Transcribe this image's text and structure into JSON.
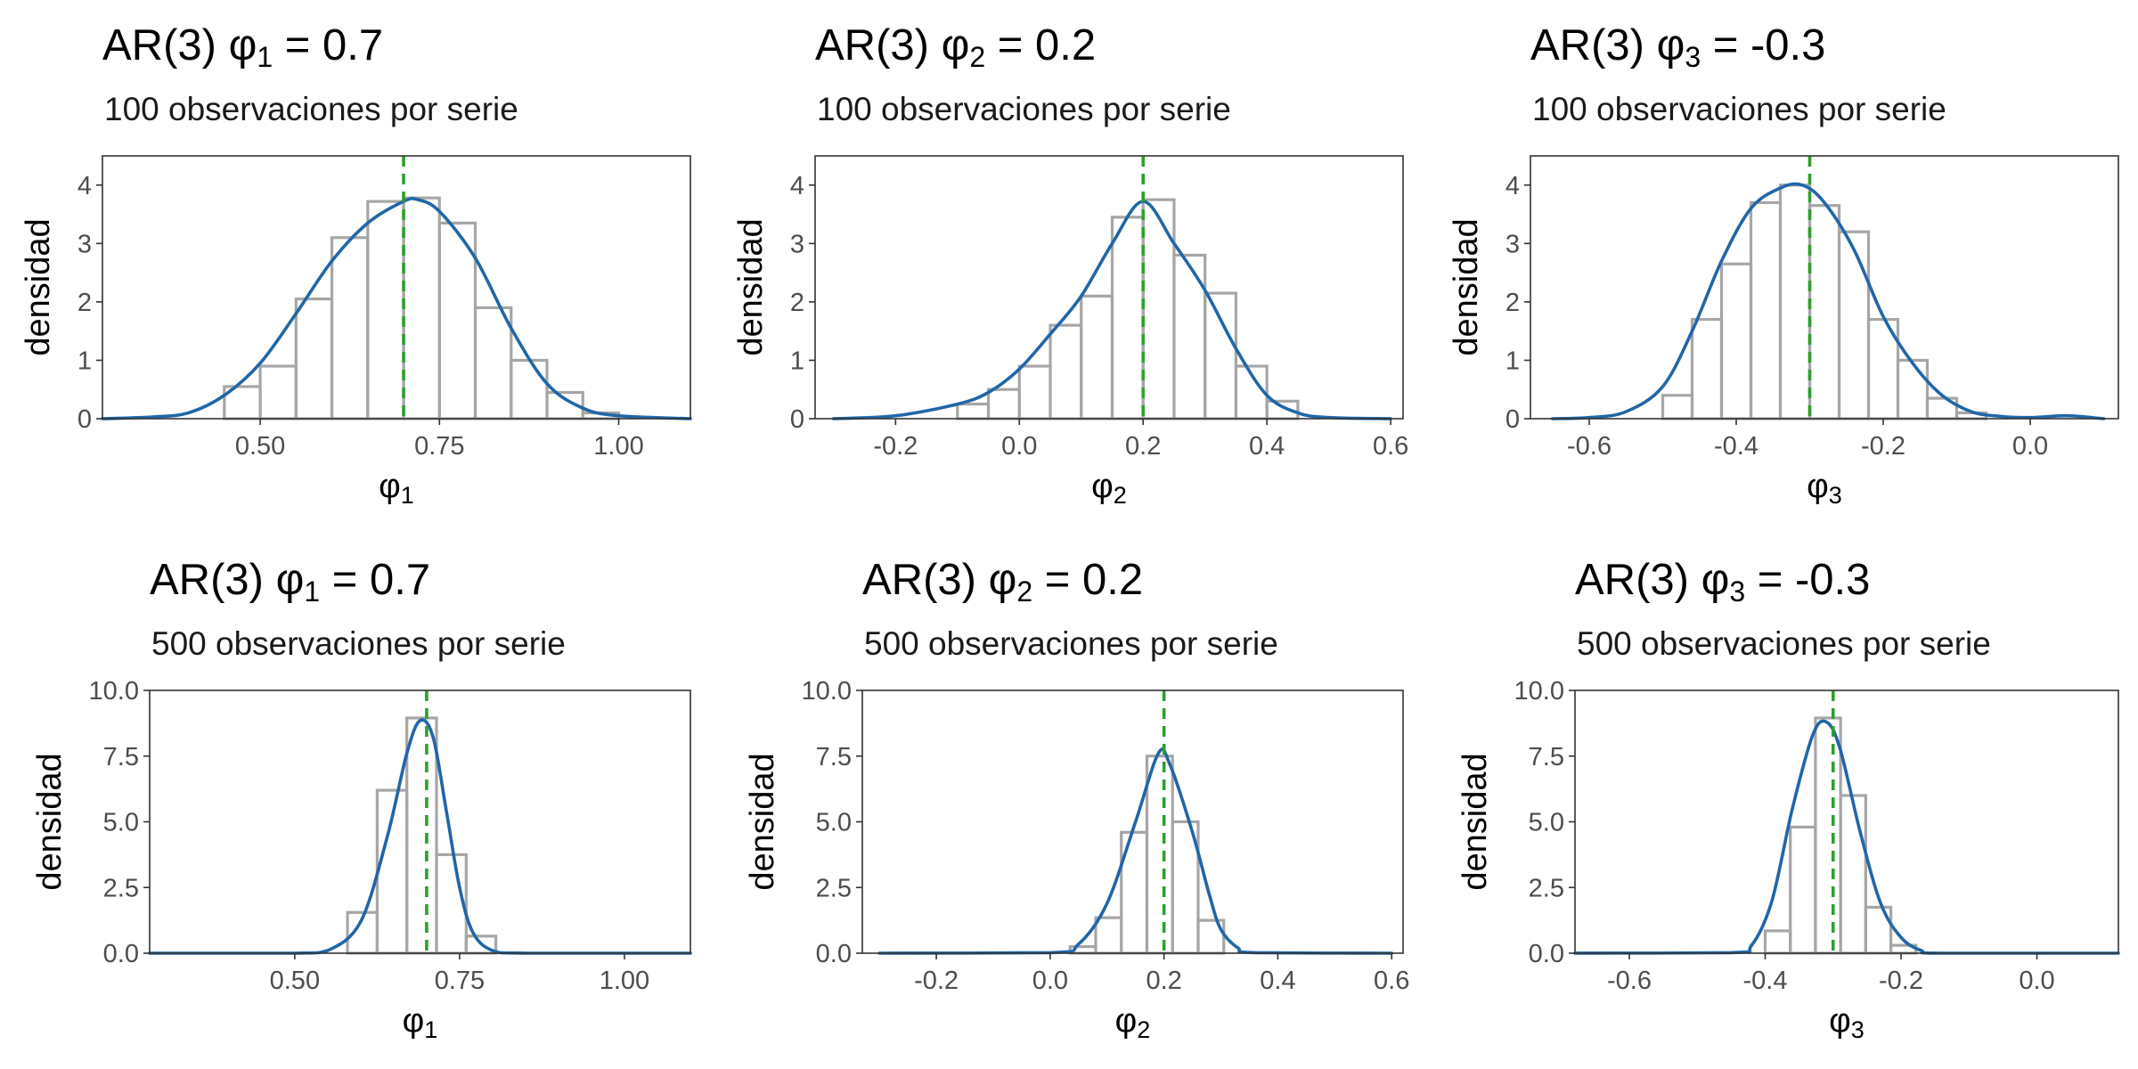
{
  "chart_data": [
    {
      "type": "histogram+density",
      "title_parts": [
        "AR(3) φ",
        "1",
        " = 0.7"
      ],
      "subtitle": "100 observaciones por serie",
      "xlabel_parts": [
        "φ",
        "1"
      ],
      "ylabel": "densidad",
      "xlim": [
        0.28,
        1.1
      ],
      "ylim": [
        0,
        4.5
      ],
      "xticks": [
        0.5,
        0.75,
        1.0
      ],
      "xtick_labels": [
        "0.50",
        "0.75",
        "1.00"
      ],
      "yticks": [
        0,
        1,
        2,
        3,
        4
      ],
      "ytick_labels": [
        "0",
        "1",
        "2",
        "3",
        "4"
      ],
      "true_value": 0.7,
      "bin_width": 0.05,
      "bars": [
        [
          0.45,
          0.55
        ],
        [
          0.5,
          0.9
        ],
        [
          0.55,
          2.05
        ],
        [
          0.6,
          3.1
        ],
        [
          0.65,
          3.72
        ],
        [
          0.7,
          3.78
        ],
        [
          0.75,
          3.35
        ],
        [
          0.8,
          1.9
        ],
        [
          0.85,
          1.0
        ],
        [
          0.9,
          0.45
        ],
        [
          0.95,
          0.1
        ]
      ],
      "density": [
        [
          0.28,
          0.0
        ],
        [
          0.35,
          0.03
        ],
        [
          0.4,
          0.1
        ],
        [
          0.45,
          0.4
        ],
        [
          0.5,
          0.95
        ],
        [
          0.55,
          1.8
        ],
        [
          0.6,
          2.7
        ],
        [
          0.65,
          3.35
        ],
        [
          0.7,
          3.72
        ],
        [
          0.72,
          3.75
        ],
        [
          0.75,
          3.55
        ],
        [
          0.8,
          2.75
        ],
        [
          0.85,
          1.55
        ],
        [
          0.9,
          0.6
        ],
        [
          0.95,
          0.18
        ],
        [
          1.0,
          0.05
        ],
        [
          1.1,
          0.0
        ]
      ]
    },
    {
      "type": "histogram+density",
      "title_parts": [
        "AR(3) φ",
        "2",
        " = 0.2"
      ],
      "subtitle": "100 observaciones por serie",
      "xlabel_parts": [
        "φ",
        "2"
      ],
      "ylabel": "densidad",
      "xlim": [
        -0.33,
        0.62
      ],
      "ylim": [
        0,
        4.5
      ],
      "xticks": [
        -0.2,
        0.0,
        0.2,
        0.4,
        0.6
      ],
      "xtick_labels": [
        "-0.2",
        "0.0",
        "0.2",
        "0.4",
        "0.6"
      ],
      "yticks": [
        0,
        1,
        2,
        3,
        4
      ],
      "ytick_labels": [
        "0",
        "1",
        "2",
        "3",
        "4"
      ],
      "true_value": 0.2,
      "bin_width": 0.05,
      "bars": [
        [
          -0.1,
          0.25
        ],
        [
          -0.05,
          0.5
        ],
        [
          0.0,
          0.9
        ],
        [
          0.05,
          1.6
        ],
        [
          0.1,
          2.1
        ],
        [
          0.15,
          3.45
        ],
        [
          0.2,
          3.75
        ],
        [
          0.25,
          2.8
        ],
        [
          0.3,
          2.15
        ],
        [
          0.35,
          0.9
        ],
        [
          0.4,
          0.3
        ]
      ],
      "density": [
        [
          -0.3,
          0.0
        ],
        [
          -0.2,
          0.05
        ],
        [
          -0.1,
          0.25
        ],
        [
          -0.05,
          0.45
        ],
        [
          0.0,
          0.85
        ],
        [
          0.05,
          1.45
        ],
        [
          0.1,
          2.1
        ],
        [
          0.15,
          3.0
        ],
        [
          0.2,
          3.72
        ],
        [
          0.25,
          3.0
        ],
        [
          0.3,
          2.2
        ],
        [
          0.35,
          1.2
        ],
        [
          0.4,
          0.4
        ],
        [
          0.45,
          0.1
        ],
        [
          0.5,
          0.02
        ],
        [
          0.6,
          0.0
        ]
      ]
    },
    {
      "type": "histogram+density",
      "title_parts": [
        "AR(3) φ",
        "3",
        " = -0.3"
      ],
      "subtitle": "100 observaciones por serie",
      "xlabel_parts": [
        "φ",
        "3"
      ],
      "ylabel": "densidad",
      "xlim": [
        -0.68,
        0.12
      ],
      "ylim": [
        0,
        4.5
      ],
      "xticks": [
        -0.6,
        -0.4,
        -0.2,
        0.0
      ],
      "xtick_labels": [
        "-0.6",
        "-0.4",
        "-0.2",
        "0.0"
      ],
      "yticks": [
        0,
        1,
        2,
        3,
        4
      ],
      "ytick_labels": [
        "0",
        "1",
        "2",
        "3",
        "4"
      ],
      "true_value": -0.3,
      "bin_width": 0.04,
      "bars": [
        [
          -0.5,
          0.4
        ],
        [
          -0.46,
          1.7
        ],
        [
          -0.42,
          2.65
        ],
        [
          -0.38,
          3.7
        ],
        [
          -0.34,
          4.0
        ],
        [
          -0.3,
          3.65
        ],
        [
          -0.26,
          3.2
        ],
        [
          -0.22,
          1.7
        ],
        [
          -0.18,
          1.0
        ],
        [
          -0.14,
          0.35
        ],
        [
          -0.1,
          0.1
        ]
      ],
      "density": [
        [
          -0.65,
          0.0
        ],
        [
          -0.6,
          0.02
        ],
        [
          -0.55,
          0.12
        ],
        [
          -0.5,
          0.55
        ],
        [
          -0.46,
          1.5
        ],
        [
          -0.42,
          2.7
        ],
        [
          -0.38,
          3.6
        ],
        [
          -0.34,
          3.95
        ],
        [
          -0.31,
          4.0
        ],
        [
          -0.28,
          3.7
        ],
        [
          -0.24,
          2.9
        ],
        [
          -0.2,
          1.75
        ],
        [
          -0.16,
          0.95
        ],
        [
          -0.12,
          0.4
        ],
        [
          -0.08,
          0.12
        ],
        [
          -0.04,
          0.04
        ],
        [
          0.0,
          0.02
        ],
        [
          0.05,
          0.05
        ],
        [
          0.1,
          0.0
        ]
      ]
    },
    {
      "type": "histogram+density",
      "title_parts": [
        "AR(3) φ",
        "1",
        " = 0.7"
      ],
      "subtitle": "500 observaciones por serie",
      "xlabel_parts": [
        "φ",
        "1"
      ],
      "ylabel": "densidad",
      "xlim": [
        0.28,
        1.1
      ],
      "ylim": [
        0,
        10
      ],
      "xticks": [
        0.5,
        0.75,
        1.0
      ],
      "xtick_labels": [
        "0.50",
        "0.75",
        "1.00"
      ],
      "yticks": [
        0,
        2.5,
        5,
        7.5,
        10
      ],
      "ytick_labels": [
        "0.0",
        "2.5",
        "5.0",
        "7.5",
        "10.0"
      ],
      "true_value": 0.7,
      "bin_width": 0.045,
      "bars": [
        [
          0.58,
          1.55
        ],
        [
          0.625,
          6.2
        ],
        [
          0.67,
          8.95
        ],
        [
          0.715,
          3.75
        ],
        [
          0.76,
          0.65
        ]
      ],
      "density": [
        [
          0.28,
          0.0
        ],
        [
          0.5,
          0.0
        ],
        [
          0.55,
          0.1
        ],
        [
          0.6,
          1.2
        ],
        [
          0.64,
          4.4
        ],
        [
          0.67,
          7.6
        ],
        [
          0.69,
          8.85
        ],
        [
          0.71,
          8.2
        ],
        [
          0.73,
          5.4
        ],
        [
          0.75,
          2.5
        ],
        [
          0.77,
          0.8
        ],
        [
          0.8,
          0.1
        ],
        [
          0.85,
          0.0
        ],
        [
          1.1,
          0.0
        ]
      ]
    },
    {
      "type": "histogram+density",
      "title_parts": [
        "AR(3) φ",
        "2",
        " = 0.2"
      ],
      "subtitle": "500 observaciones por serie",
      "xlabel_parts": [
        "φ",
        "2"
      ],
      "ylabel": "densidad",
      "xlim": [
        -0.33,
        0.62
      ],
      "ylim": [
        0,
        10
      ],
      "xticks": [
        -0.2,
        0.0,
        0.2,
        0.4,
        0.6
      ],
      "xtick_labels": [
        "-0.2",
        "0.0",
        "0.2",
        "0.4",
        "0.6"
      ],
      "yticks": [
        0,
        2.5,
        5,
        7.5,
        10
      ],
      "ytick_labels": [
        "0.0",
        "2.5",
        "5.0",
        "7.5",
        "10.0"
      ],
      "true_value": 0.2,
      "bin_width": 0.045,
      "bars": [
        [
          0.035,
          0.25
        ],
        [
          0.08,
          1.35
        ],
        [
          0.125,
          4.6
        ],
        [
          0.17,
          7.5
        ],
        [
          0.215,
          5.0
        ],
        [
          0.26,
          1.25
        ]
      ],
      "density": [
        [
          -0.3,
          0.0
        ],
        [
          0.0,
          0.02
        ],
        [
          0.05,
          0.35
        ],
        [
          0.1,
          1.9
        ],
        [
          0.15,
          5.0
        ],
        [
          0.19,
          7.6
        ],
        [
          0.21,
          7.2
        ],
        [
          0.25,
          4.6
        ],
        [
          0.28,
          2.2
        ],
        [
          0.3,
          0.9
        ],
        [
          0.33,
          0.2
        ],
        [
          0.36,
          0.02
        ],
        [
          0.6,
          0.0
        ]
      ]
    },
    {
      "type": "histogram+density",
      "title_parts": [
        "AR(3) φ",
        "3",
        " = -0.3"
      ],
      "subtitle": "500 observaciones por serie",
      "xlabel_parts": [
        "φ",
        "3"
      ],
      "ylabel": "densidad",
      "xlim": [
        -0.68,
        0.12
      ],
      "ylim": [
        0,
        10
      ],
      "xticks": [
        -0.6,
        -0.4,
        -0.2,
        0.0
      ],
      "xtick_labels": [
        "-0.6",
        "-0.4",
        "-0.2",
        "0.0"
      ],
      "yticks": [
        0,
        2.5,
        5,
        7.5,
        10
      ],
      "ytick_labels": [
        "0.0",
        "2.5",
        "5.0",
        "7.5",
        "10.0"
      ],
      "true_value": -0.3,
      "bin_width": 0.037,
      "bars": [
        [
          -0.4,
          0.85
        ],
        [
          -0.363,
          4.8
        ],
        [
          -0.326,
          8.95
        ],
        [
          -0.289,
          6.0
        ],
        [
          -0.252,
          1.75
        ],
        [
          -0.215,
          0.3
        ]
      ],
      "density": [
        [
          -0.68,
          0.0
        ],
        [
          -0.45,
          0.02
        ],
        [
          -0.42,
          0.3
        ],
        [
          -0.39,
          2.0
        ],
        [
          -0.36,
          5.5
        ],
        [
          -0.33,
          8.3
        ],
        [
          -0.31,
          8.8
        ],
        [
          -0.29,
          7.8
        ],
        [
          -0.26,
          4.6
        ],
        [
          -0.23,
          1.9
        ],
        [
          -0.2,
          0.6
        ],
        [
          -0.17,
          0.1
        ],
        [
          -0.14,
          0.0
        ],
        [
          0.12,
          0.0
        ]
      ]
    }
  ]
}
